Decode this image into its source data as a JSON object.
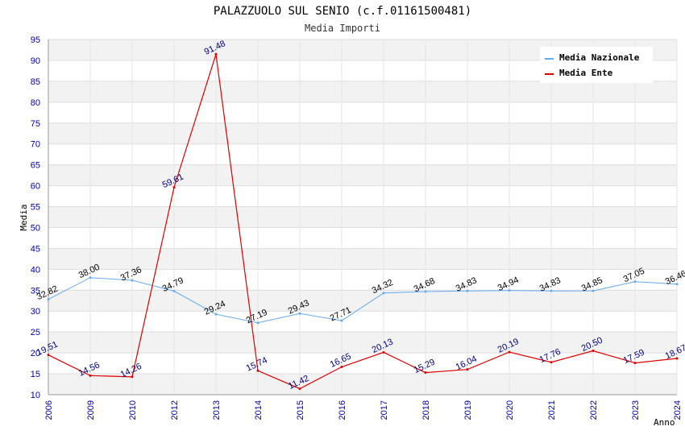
{
  "chart_data": {
    "type": "line",
    "title": "PALAZZUOLO SUL SENIO (c.f.01161500481)",
    "subtitle": "Media Importi",
    "xlabel": "Anno",
    "ylabel": "Media",
    "ylim": [
      10,
      95
    ],
    "y_ticks": [
      "10",
      "15",
      "20",
      "25",
      "30",
      "35",
      "40",
      "45",
      "50",
      "55",
      "60",
      "65",
      "70",
      "75",
      "80",
      "85",
      "90",
      "95"
    ],
    "categories": [
      "2006",
      "2009",
      "2010",
      "2012",
      "2013",
      "2014",
      "2015",
      "2016",
      "2017",
      "2018",
      "2019",
      "2020",
      "2021",
      "2022",
      "2023",
      "2024"
    ],
    "series": [
      {
        "name": "Media Nazionale",
        "color": "#66aaee",
        "label_color": "#000000",
        "values": [
          32.82,
          38.0,
          37.36,
          34.79,
          29.24,
          27.19,
          29.43,
          27.71,
          34.32,
          34.68,
          34.83,
          34.94,
          34.83,
          34.85,
          37.05,
          36.46
        ],
        "labels": [
          "32.82",
          "38.00",
          "37.36",
          "34.79",
          "29.24",
          "27.19",
          "29.43",
          "27.71",
          "34.32",
          "34.68",
          "34.83",
          "34.94",
          "34.83",
          "34.85",
          "37.05",
          "36.46"
        ]
      },
      {
        "name": "Media Ente",
        "color": "#dd0000",
        "label_color": "#000080",
        "values": [
          19.51,
          14.56,
          14.26,
          59.61,
          91.48,
          15.74,
          11.42,
          16.65,
          20.13,
          15.29,
          16.04,
          20.19,
          17.76,
          20.5,
          17.59,
          18.67
        ],
        "labels": [
          "19.51",
          "14.56",
          "14.26",
          "59.61",
          "91.48",
          "15.74",
          "11.42",
          "16.65",
          "20.13",
          "15.29",
          "16.04",
          "20.19",
          "17.76",
          "20.50",
          "17.59",
          "18.67"
        ]
      }
    ],
    "grid": true,
    "legend": "top-right"
  }
}
